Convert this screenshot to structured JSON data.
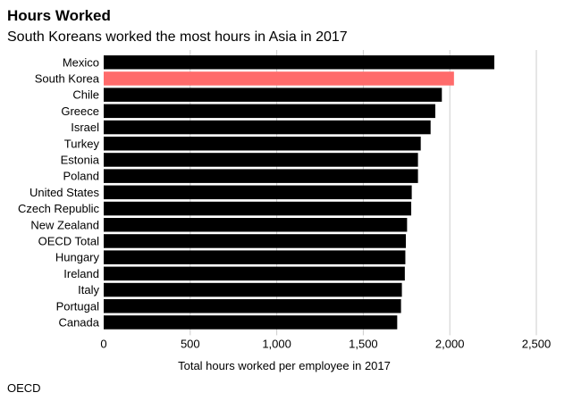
{
  "header": {
    "title": "Hours Worked",
    "subtitle": "South Koreans worked the most hours in Asia in 2017"
  },
  "footer": {
    "source": "OECD"
  },
  "colors": {
    "bar": "#000000",
    "highlight": "#ff6b6b",
    "grid": "#cccccc"
  },
  "chart_data": {
    "type": "bar",
    "orientation": "horizontal",
    "title": "Hours Worked",
    "subtitle": "South Koreans worked the most hours in Asia in 2017",
    "xlabel": "Total hours worked per employee in 2017",
    "ylabel": "",
    "xlim": [
      0,
      2500
    ],
    "xticks": [
      0,
      500,
      1000,
      1500,
      2000,
      2500
    ],
    "xtick_labels": [
      "0",
      "500",
      "1,000",
      "1,500",
      "2,000",
      "2,500"
    ],
    "grid": true,
    "highlight": "South Korea",
    "categories": [
      "Mexico",
      "South Korea",
      "Chile",
      "Greece",
      "Israel",
      "Turkey",
      "Estonia",
      "Poland",
      "United States",
      "Czech Republic",
      "New Zealand",
      "OECD Total",
      "Hungary",
      "Ireland",
      "Italy",
      "Portugal",
      "Canada"
    ],
    "values": [
      2257,
      2024,
      1954,
      1916,
      1889,
      1832,
      1816,
      1816,
      1780,
      1777,
      1753,
      1746,
      1743,
      1740,
      1723,
      1718,
      1696
    ]
  }
}
